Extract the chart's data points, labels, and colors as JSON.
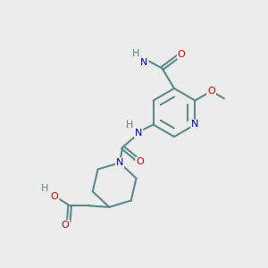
{
  "bg_color": "#ececec",
  "bond_color": "#5a8a8a",
  "bond_width": 1.5,
  "atom_colors": {
    "O": "#cc0000",
    "N": "#0000bb",
    "C": "#5a8a8a",
    "H": "#5a8a8a"
  },
  "font_size": 8.0
}
